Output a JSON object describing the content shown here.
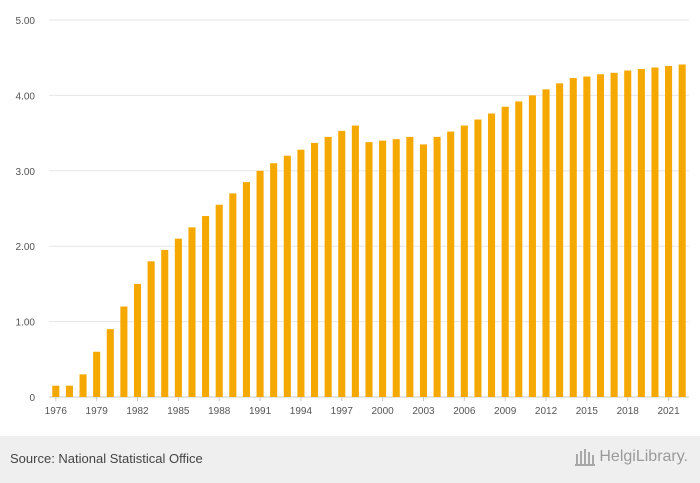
{
  "chart_data": {
    "type": "bar",
    "categories": [
      "1976",
      "1977",
      "1978",
      "1979",
      "1980",
      "1981",
      "1982",
      "1983",
      "1984",
      "1985",
      "1986",
      "1987",
      "1988",
      "1989",
      "1990",
      "1991",
      "1992",
      "1993",
      "1994",
      "1995",
      "1996",
      "1997",
      "1998",
      "1999",
      "2000",
      "2001",
      "2002",
      "2003",
      "2004",
      "2005",
      "2006",
      "2007",
      "2008",
      "2009",
      "2010",
      "2011",
      "2012",
      "2013",
      "2014",
      "2015",
      "2016",
      "2017",
      "2018",
      "2019",
      "2020",
      "2021",
      "2022"
    ],
    "values": [
      0.15,
      0.15,
      0.3,
      0.6,
      0.9,
      1.2,
      1.5,
      1.8,
      1.95,
      2.1,
      2.25,
      2.4,
      2.55,
      2.7,
      2.85,
      3.0,
      3.1,
      3.2,
      3.28,
      3.37,
      3.45,
      3.53,
      3.6,
      3.38,
      3.4,
      3.42,
      3.45,
      3.35,
      3.45,
      3.52,
      3.6,
      3.68,
      3.76,
      3.85,
      3.92,
      4.0,
      4.08,
      4.16,
      4.23,
      4.25,
      4.28,
      4.3,
      4.33,
      4.35,
      4.37,
      4.39,
      4.41
    ],
    "x_tick_labels": [
      "1976",
      "1979",
      "1982",
      "1985",
      "1988",
      "1991",
      "1994",
      "1997",
      "2000",
      "2003",
      "2006",
      "2009",
      "2012",
      "2015",
      "2018",
      "2021"
    ],
    "y_tick_labels": [
      "0",
      "1.00",
      "2.00",
      "3.00",
      "4.00",
      "5.00"
    ],
    "ylim": [
      0,
      5
    ],
    "grid": true,
    "bar_color": "#f5a800",
    "grid_color": "#e6e6e6",
    "title": "",
    "xlabel": "",
    "ylabel": ""
  },
  "footer": {
    "source": "Source: National Statistical Office",
    "brand": "HelgiLibrary."
  }
}
